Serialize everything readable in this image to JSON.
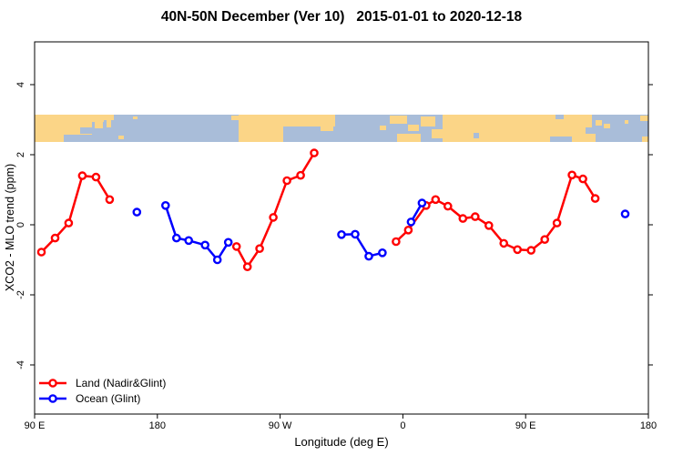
{
  "title": "40N-50N December (Ver 10)   2015-01-01 to 2020-12-18",
  "axes": {
    "x_label": "Longitude (deg E)",
    "y_label": "XCO2 - MLO trend (ppm)",
    "x_tick_labels": [
      "90 E",
      "180",
      "90 W",
      "0",
      "90 E",
      "180"
    ],
    "y_tick_labels": [
      "4",
      "2",
      "0",
      "-2",
      "-4"
    ]
  },
  "legend": {
    "land_label": "Land (Nadir&Glint)",
    "ocean_label": "Ocean (Glint)"
  },
  "colors": {
    "land_series": "#ff0000",
    "ocean_series": "#0000ff",
    "map_land": "#fbd587",
    "map_ocean": "#a9bdd9",
    "axis": "#000000",
    "background": "#ffffff"
  },
  "chart_data": {
    "type": "line",
    "title": "40N-50N December (Ver 10)   2015-01-01 to 2020-12-18",
    "xlabel": "Longitude (deg E)",
    "ylabel": "XCO2 - MLO trend (ppm)",
    "x_axis_note": "longitude axis starts at 90E and wraps eastward: 90E, 180, 90W, 0, 90E, 180 (unwrapped degrees 90 to 540); data from 90E-180E is plotted twice",
    "x_tick_lons": [
      90,
      180,
      270,
      360,
      450,
      540
    ],
    "x_tick_labels": [
      "90 E",
      "180",
      "90 W",
      "0",
      "90 E",
      "180"
    ],
    "y_tick_values": [
      4,
      2,
      0,
      -2,
      -4
    ],
    "ylim": [
      -5.4,
      5.2
    ],
    "legend_position": "bottom-left",
    "grid": false,
    "map_strip_ppm_range": [
      2.36,
      3.14
    ],
    "series": [
      {
        "name": "Land (Nadir&Glint)",
        "color": "#ff0000",
        "marker": "open-circle",
        "segments": [
          [
            [
              95,
              -0.78
            ],
            [
              105,
              -0.38
            ],
            [
              115,
              0.05
            ],
            [
              125,
              1.4
            ],
            [
              135,
              1.36
            ],
            [
              145,
              0.72
            ]
          ],
          [
            [
              238,
              -0.62
            ],
            [
              246,
              -1.2
            ],
            [
              255,
              -0.68
            ],
            [
              265,
              0.21
            ],
            [
              275,
              1.26
            ],
            [
              285,
              1.41
            ],
            [
              295,
              2.05
            ]
          ],
          [
            [
              355,
              -0.48
            ],
            [
              364,
              -0.15
            ],
            [
              377,
              0.55
            ],
            [
              384,
              0.72
            ],
            [
              393,
              0.53
            ],
            [
              404,
              0.18
            ],
            [
              413,
              0.23
            ],
            [
              423,
              -0.02
            ],
            [
              434,
              -0.53
            ],
            [
              444,
              -0.71
            ],
            [
              454,
              -0.73
            ],
            [
              464,
              -0.42
            ],
            [
              473,
              0.05
            ],
            [
              484,
              1.42
            ],
            [
              492,
              1.31
            ],
            [
              501,
              0.75
            ]
          ]
        ]
      },
      {
        "name": "Ocean (Glint)",
        "color": "#0000ff",
        "marker": "open-circle",
        "segments": [
          [
            [
              165,
              0.36
            ]
          ],
          [
            [
              186,
              0.55
            ],
            [
              194,
              -0.38
            ],
            [
              203,
              -0.45
            ],
            [
              215,
              -0.58
            ],
            [
              224,
              -1.0
            ],
            [
              232,
              -0.5
            ]
          ],
          [
            [
              315,
              -0.28
            ],
            [
              325,
              -0.27
            ],
            [
              335,
              -0.9
            ],
            [
              345,
              -0.8
            ]
          ],
          [
            [
              366,
              0.08
            ],
            [
              374,
              0.62
            ]
          ],
          [
            [
              523,
              0.31
            ]
          ]
        ]
      }
    ]
  }
}
